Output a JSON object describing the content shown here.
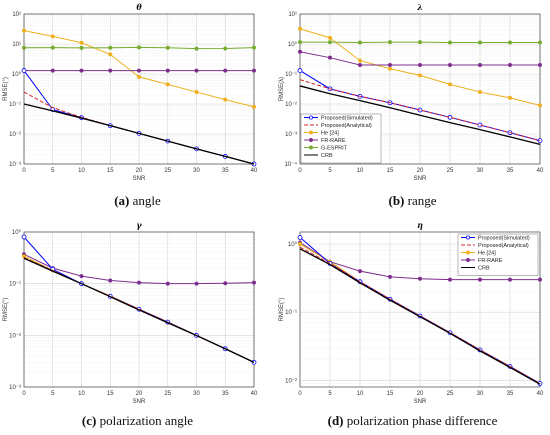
{
  "captions": [
    {
      "letter": "(a)",
      "text": " angle"
    },
    {
      "letter": "(b)",
      "text": " range"
    },
    {
      "letter": "(c)",
      "text": " polarization angle"
    },
    {
      "letter": "(d)",
      "text": " polarization phase difference"
    }
  ],
  "chart_data": [
    {
      "type": "line",
      "title": "θ",
      "xlabel": "SNR",
      "ylabel": "RMSE(°)",
      "yscale": "log",
      "xlim": [
        0,
        40
      ],
      "ylim": [
        0.001,
        100
      ],
      "xticks": [
        0,
        5,
        10,
        15,
        20,
        25,
        30,
        35,
        40
      ],
      "yticks": [
        0.001,
        0.01,
        0.1,
        1,
        10,
        100
      ],
      "ytick_labels": [
        "10⁻³",
        "10⁻²",
        "10⁻¹",
        "10⁰",
        "10¹",
        "10²"
      ],
      "grid": true,
      "legend": null,
      "x": [
        0,
        5,
        10,
        15,
        20,
        25,
        30,
        35,
        40
      ],
      "series": [
        {
          "key": "he",
          "color": "#EDB120",
          "marker": "o",
          "dash": "",
          "values": [
            28,
            18,
            11,
            4.5,
            0.8,
            0.45,
            0.25,
            0.14,
            0.08
          ]
        },
        {
          "key": "gesprit",
          "color": "#77AC30",
          "marker": "o",
          "dash": "",
          "values": [
            7.5,
            7.6,
            7.4,
            7.5,
            7.7,
            7.5,
            7.0,
            7.1,
            7.6
          ]
        },
        {
          "key": "frrare",
          "color": "#7E2F8E",
          "marker": "o",
          "dash": "",
          "values": [
            1.3,
            1.3,
            1.3,
            1.3,
            1.3,
            1.3,
            1.3,
            1.3,
            1.3
          ]
        },
        {
          "key": "sim",
          "color": "#0000FF",
          "marker": "o",
          "dash": "",
          "values": [
            1.3,
            0.065,
            0.035,
            0.019,
            0.0105,
            0.0058,
            0.0032,
            0.0018,
            0.001
          ]
        },
        {
          "key": "ana",
          "color": "#D62728",
          "marker": "",
          "dash": "4,2",
          "values": [
            0.25,
            0.075,
            0.036,
            0.019,
            0.0105,
            0.0058,
            0.0032,
            0.0018,
            0.001
          ]
        },
        {
          "key": "crb",
          "color": "#000000",
          "marker": "",
          "dash": "",
          "values": [
            0.1,
            0.059,
            0.034,
            0.019,
            0.0105,
            0.0058,
            0.0032,
            0.0018,
            0.001
          ]
        }
      ]
    },
    {
      "type": "line",
      "title": "λ",
      "xlabel": "SNR",
      "ylabel": "RMSE(λ)",
      "yscale": "log",
      "xlim": [
        0,
        40
      ],
      "ylim": [
        0.0001,
        10
      ],
      "xticks": [
        0,
        5,
        10,
        15,
        20,
        25,
        30,
        35,
        40
      ],
      "yticks": [
        0.0001,
        0.001,
        0.01,
        0.1,
        1,
        10
      ],
      "ytick_labels": [
        "10⁻⁴",
        "10⁻³",
        "10⁻²",
        "10⁻¹",
        "10⁰",
        "10¹"
      ],
      "grid": true,
      "legend": {
        "position": "bottom-left",
        "entries": [
          {
            "key": "sim",
            "label": "Proposed(Simulated)"
          },
          {
            "key": "ana",
            "label": "Proposed(Analytical)"
          },
          {
            "key": "he",
            "label": "He [24]"
          },
          {
            "key": "frrare",
            "label": "FR-RARE"
          },
          {
            "key": "gesprit",
            "label": "G-ESPRIT"
          },
          {
            "key": "crb",
            "label": "CRB"
          }
        ]
      },
      "x": [
        0,
        5,
        10,
        15,
        20,
        25,
        30,
        35,
        40
      ],
      "series": [
        {
          "key": "he",
          "color": "#EDB120",
          "marker": "o",
          "dash": "",
          "values": [
            3.2,
            1.6,
            0.28,
            0.15,
            0.09,
            0.045,
            0.025,
            0.016,
            0.009
          ]
        },
        {
          "key": "gesprit",
          "color": "#77AC30",
          "marker": "o",
          "dash": "",
          "values": [
            1.15,
            1.15,
            1.12,
            1.15,
            1.15,
            1.12,
            1.12,
            1.12,
            1.12
          ]
        },
        {
          "key": "frrare",
          "color": "#7E2F8E",
          "marker": "o",
          "dash": "",
          "values": [
            0.55,
            0.35,
            0.2,
            0.2,
            0.2,
            0.2,
            0.2,
            0.2,
            0.2
          ]
        },
        {
          "key": "sim",
          "color": "#0000FF",
          "marker": "o",
          "dash": "",
          "values": [
            0.13,
            0.032,
            0.018,
            0.011,
            0.0063,
            0.0036,
            0.002,
            0.0011,
            0.0006
          ]
        },
        {
          "key": "ana",
          "color": "#D62728",
          "marker": "",
          "dash": "4,2",
          "values": [
            0.065,
            0.032,
            0.018,
            0.011,
            0.0063,
            0.0036,
            0.002,
            0.0011,
            0.0006
          ]
        },
        {
          "key": "crb",
          "color": "#000000",
          "marker": "",
          "dash": "",
          "values": [
            0.04,
            0.022,
            0.013,
            0.0075,
            0.0042,
            0.0024,
            0.0014,
            0.0008,
            0.00045
          ]
        }
      ]
    },
    {
      "type": "line",
      "title": "γ",
      "xlabel": "SNR",
      "ylabel": "RMSE(°)",
      "yscale": "log",
      "xlim": [
        0,
        40
      ],
      "ylim": [
        0.001,
        1
      ],
      "xticks": [
        0,
        5,
        10,
        15,
        20,
        25,
        30,
        35,
        40
      ],
      "yticks": [
        0.001,
        0.01,
        0.1,
        1
      ],
      "ytick_labels": [
        "10⁻³",
        "10⁻²",
        "10⁻¹",
        "10⁰"
      ],
      "grid": true,
      "legend": null,
      "x": [
        0,
        5,
        10,
        15,
        20,
        25,
        30,
        35,
        40
      ],
      "series": [
        {
          "key": "frrare",
          "color": "#7E2F8E",
          "marker": "o",
          "dash": "",
          "values": [
            0.37,
            0.2,
            0.14,
            0.115,
            0.105,
            0.1,
            0.1,
            0.102,
            0.105
          ]
        },
        {
          "key": "he",
          "color": "#EDB120",
          "marker": "o",
          "dash": "",
          "values": [
            0.34,
            0.18,
            0.1,
            0.058,
            0.032,
            0.018,
            0.01,
            0.0055,
            0.003
          ]
        },
        {
          "key": "sim",
          "color": "#0000FF",
          "marker": "o",
          "dash": "",
          "values": [
            0.8,
            0.19,
            0.1,
            0.057,
            0.032,
            0.018,
            0.01,
            0.0055,
            0.003
          ]
        },
        {
          "key": "ana",
          "color": "#D62728",
          "marker": "",
          "dash": "4,2",
          "values": [
            0.32,
            0.18,
            0.1,
            0.057,
            0.032,
            0.018,
            0.01,
            0.0055,
            0.003
          ]
        },
        {
          "key": "crb",
          "color": "#000000",
          "marker": "",
          "dash": "",
          "values": [
            0.31,
            0.175,
            0.1,
            0.056,
            0.031,
            0.0175,
            0.0099,
            0.0055,
            0.003
          ]
        }
      ]
    },
    {
      "type": "line",
      "title": "η",
      "xlabel": "SNR",
      "ylabel": "RMSE(°)",
      "yscale": "log",
      "xlim": [
        0,
        40
      ],
      "ylim": [
        0.008,
        1.5
      ],
      "xticks": [
        0,
        5,
        10,
        15,
        20,
        25,
        30,
        35,
        40
      ],
      "yticks": [
        0.01,
        0.1,
        1
      ],
      "ytick_labels": [
        "10⁻²",
        "10⁻¹",
        "10⁰"
      ],
      "grid": true,
      "legend": {
        "position": "top-right",
        "entries": [
          {
            "key": "sim",
            "label": "Proposed(Simulated)"
          },
          {
            "key": "ana",
            "label": "Proposed(Analytical)"
          },
          {
            "key": "he",
            "label": "He [24]"
          },
          {
            "key": "frrare",
            "label": "FR-RARE"
          },
          {
            "key": "crb",
            "label": "CRB"
          }
        ]
      },
      "x": [
        0,
        5,
        10,
        15,
        20,
        25,
        30,
        35,
        40
      ],
      "series": [
        {
          "key": "frrare",
          "color": "#7E2F8E",
          "marker": "o",
          "dash": "",
          "values": [
            1.05,
            0.55,
            0.4,
            0.33,
            0.31,
            0.3,
            0.3,
            0.3,
            0.3
          ]
        },
        {
          "key": "he",
          "color": "#EDB120",
          "marker": "o",
          "dash": "",
          "values": [
            1.0,
            0.55,
            0.28,
            0.155,
            0.088,
            0.05,
            0.028,
            0.016,
            0.009
          ]
        },
        {
          "key": "sim",
          "color": "#0000FF",
          "marker": "o",
          "dash": "",
          "values": [
            1.25,
            0.52,
            0.28,
            0.155,
            0.088,
            0.05,
            0.028,
            0.016,
            0.009
          ]
        },
        {
          "key": "ana",
          "color": "#D62728",
          "marker": "",
          "dash": "4,2",
          "values": [
            0.9,
            0.52,
            0.28,
            0.155,
            0.088,
            0.05,
            0.028,
            0.016,
            0.009
          ]
        },
        {
          "key": "crb",
          "color": "#000000",
          "marker": "",
          "dash": "",
          "values": [
            0.85,
            0.5,
            0.27,
            0.15,
            0.086,
            0.049,
            0.027,
            0.0155,
            0.0088
          ]
        }
      ]
    }
  ]
}
